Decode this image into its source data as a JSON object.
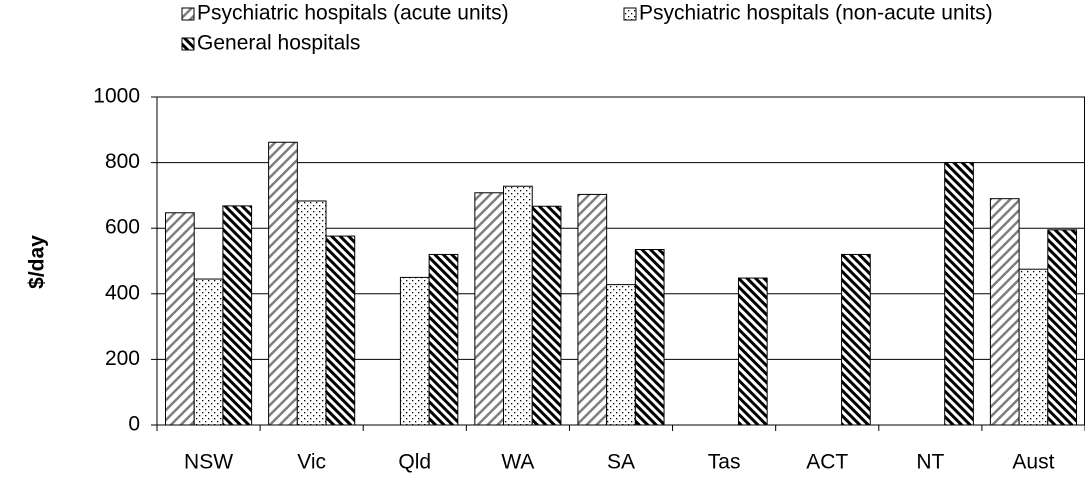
{
  "chart_data": {
    "type": "bar",
    "y_label": "$/day",
    "categories": [
      "NSW",
      "Vic",
      "Qld",
      "WA",
      "SA",
      "Tas",
      "ACT",
      "NT",
      "Aust"
    ],
    "series": [
      {
        "name": "Psychiatric hospitals (acute units)",
        "color": "#7f7f7f",
        "values": [
          647,
          862,
          null,
          708,
          703,
          null,
          null,
          null,
          690
        ]
      },
      {
        "name": "Psychiatric hospitals (non-acute units)",
        "color": "#000000",
        "values": [
          445,
          683,
          450,
          728,
          428,
          null,
          null,
          null,
          475
        ]
      },
      {
        "name": "General hospitals",
        "color": "#000000",
        "values": [
          668,
          576,
          520,
          667,
          535,
          448,
          520,
          800,
          595
        ]
      }
    ],
    "ylim": [
      0,
      1000
    ],
    "yticks": [
      0,
      200,
      400,
      600,
      800,
      1000
    ],
    "grid": true
  }
}
